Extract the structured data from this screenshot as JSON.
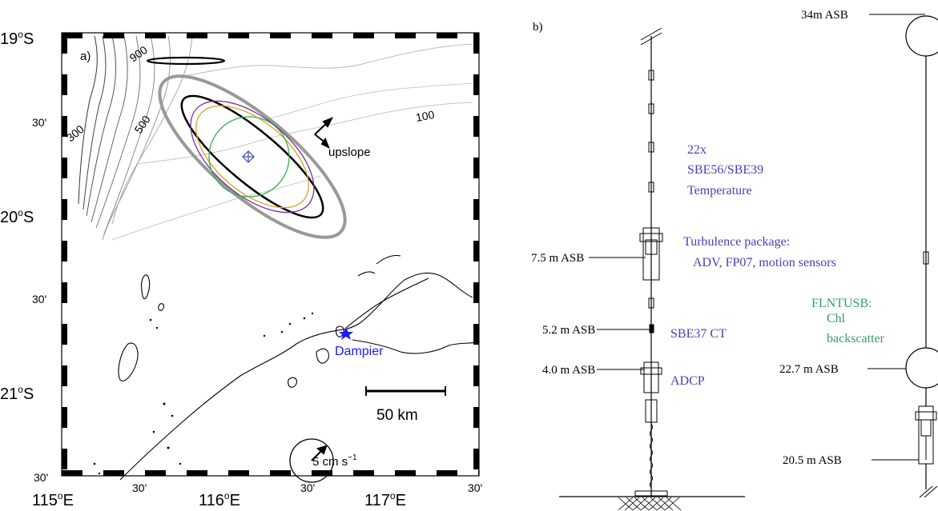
{
  "panel_a": {
    "label": "a)",
    "lat_labels": [
      "19",
      "30'",
      "20",
      "30'",
      "21",
      "30'"
    ],
    "lat_hemisphere": "S",
    "lon_labels": [
      "115",
      "30'",
      "116",
      "30'",
      "117",
      "30'"
    ],
    "lon_hemisphere": "E",
    "degree_symbol": "o",
    "contours": [
      "900",
      "500",
      "300",
      "100"
    ],
    "upslope": "upslope",
    "place": "Dampier",
    "scale_label": "50 km",
    "velocity_label": "5 cm s",
    "velocity_exp": "−1",
    "colors": {
      "outer_ellipse": "#999999",
      "inner_ellipse": "#000000",
      "purple_ellipse": "#7a2fa3",
      "orange_ellipse": "#d9a21f",
      "green_ellipse": "#37b24a",
      "marker": "#4b4bb0",
      "dampier": "#1a1aff"
    }
  },
  "panel_b": {
    "label": "b)",
    "instruments": {
      "temperature_count": "22x",
      "temperature_model": "SBE56/SBE39",
      "temperature_label": "Temperature",
      "turbulence_title": "Turbulence package:",
      "turbulence_detail": "ADV, FP07, motion sensors",
      "ct": "SBE37 CT",
      "adcp": "ADCP",
      "flntu_title": "FLNTUSB:",
      "flntu_chl": "Chl",
      "flntu_backscatter": "backscatter"
    },
    "heights": {
      "h7_5": "7.5 m ASB",
      "h5_2": "5.2 m ASB",
      "h4_0": "4.0 m ASB",
      "h34": "34m ASB",
      "h22_7": "22.7 m ASB",
      "h20_5": "20.5 m ASB"
    },
    "colors": {
      "instrument_text": "#4a3fb8",
      "flntu_text": "#3a9a6a"
    }
  }
}
